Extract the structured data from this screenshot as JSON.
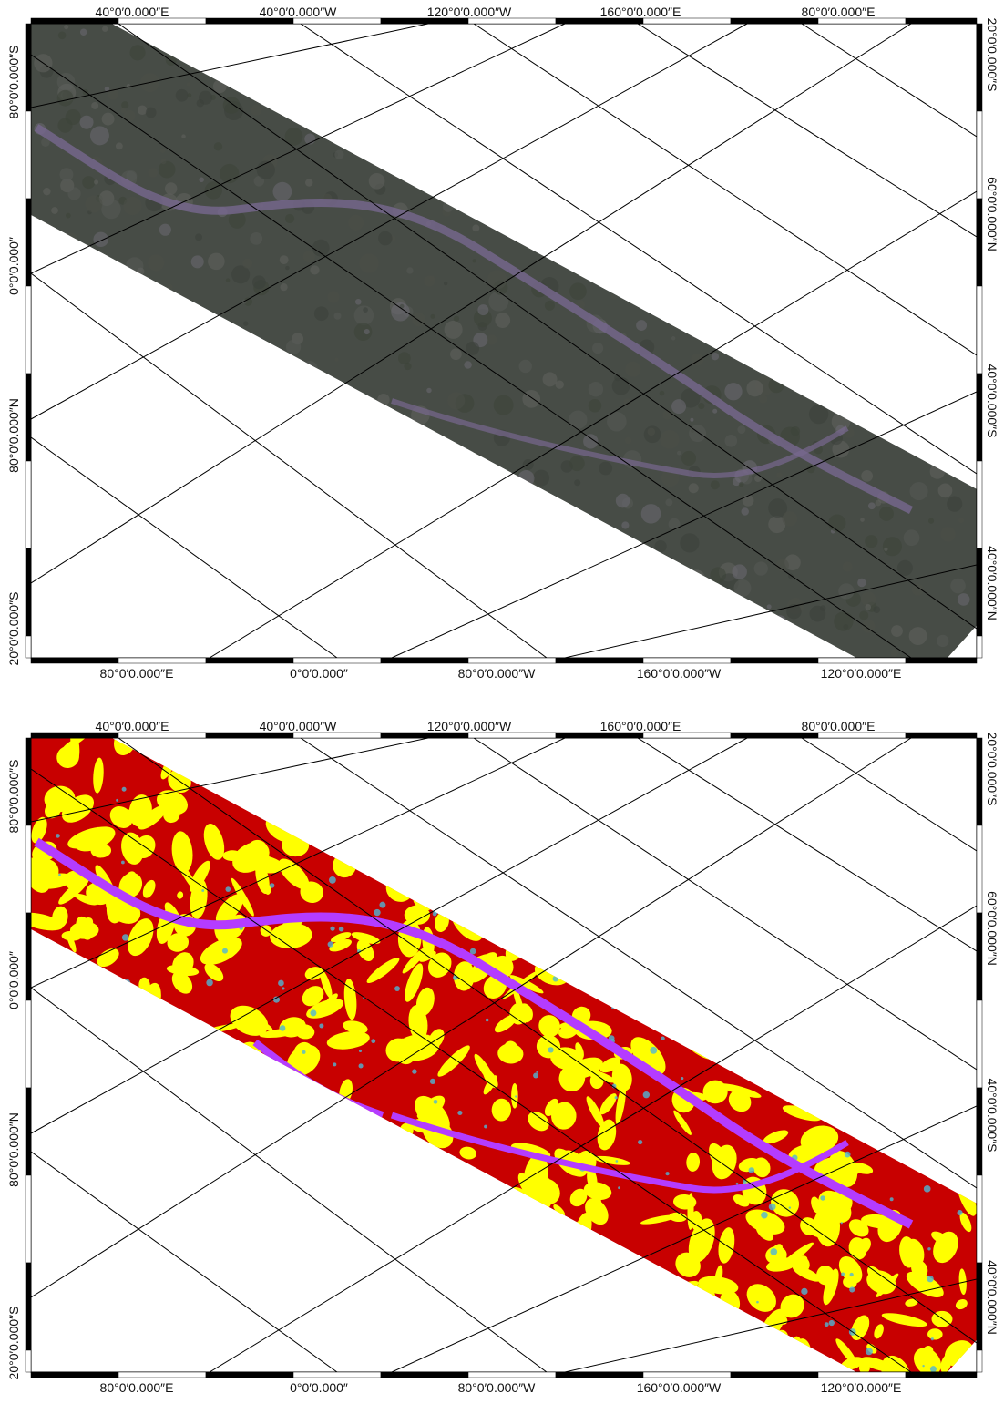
{
  "colors": {
    "frame": "#000000",
    "grid": "#000000",
    "rgb_strip": "#474c46",
    "class_red": "#c80000",
    "class_yellow": "#ffff00",
    "class_magenta": "#b43cff",
    "class_cyan": "#4fb6d6"
  },
  "panels": [
    {
      "name": "rgb-image-map",
      "top_labels": [
        "40°0′0.000″E",
        "40°0′0.000″W",
        "120°0′0.000″W",
        "160°0′0.000″E",
        "80°0′0.000″E"
      ],
      "bottom_labels": [
        "80°0′0.000″E",
        "0°0′0.000″",
        "80°0′0.000″W",
        "160°0′0.000″W",
        "120°0′0.000″E"
      ],
      "left_labels": [
        "80°0′0.000″S",
        "0°0′0.000″",
        "80°0′0.000″N",
        "20°0′0.000″S"
      ],
      "right_labels": [
        "20°0′0.000″S",
        "60°0′0.000″N",
        "40°0′0.000″S",
        "40°0′0.000″N"
      ]
    },
    {
      "name": "classification-map",
      "top_labels": [
        "40°0′0.000″E",
        "40°0′0.000″W",
        "120°0′0.000″W",
        "160°0′0.000″E",
        "80°0′0.000″E"
      ],
      "bottom_labels": [
        "80°0′0.000″E",
        "0°0′0.000″",
        "80°0′0.000″W",
        "160°0′0.000″W",
        "120°0′0.000″E"
      ],
      "left_labels": [
        "80°0′0.000″S",
        "0°0′0.000″",
        "80°0′0.000″N",
        "20°0′0.000″S"
      ],
      "right_labels": [
        "20°0′0.000″S",
        "60°0′0.000″N",
        "40°0′0.000″S",
        "40°0′0.000″N"
      ]
    }
  ]
}
